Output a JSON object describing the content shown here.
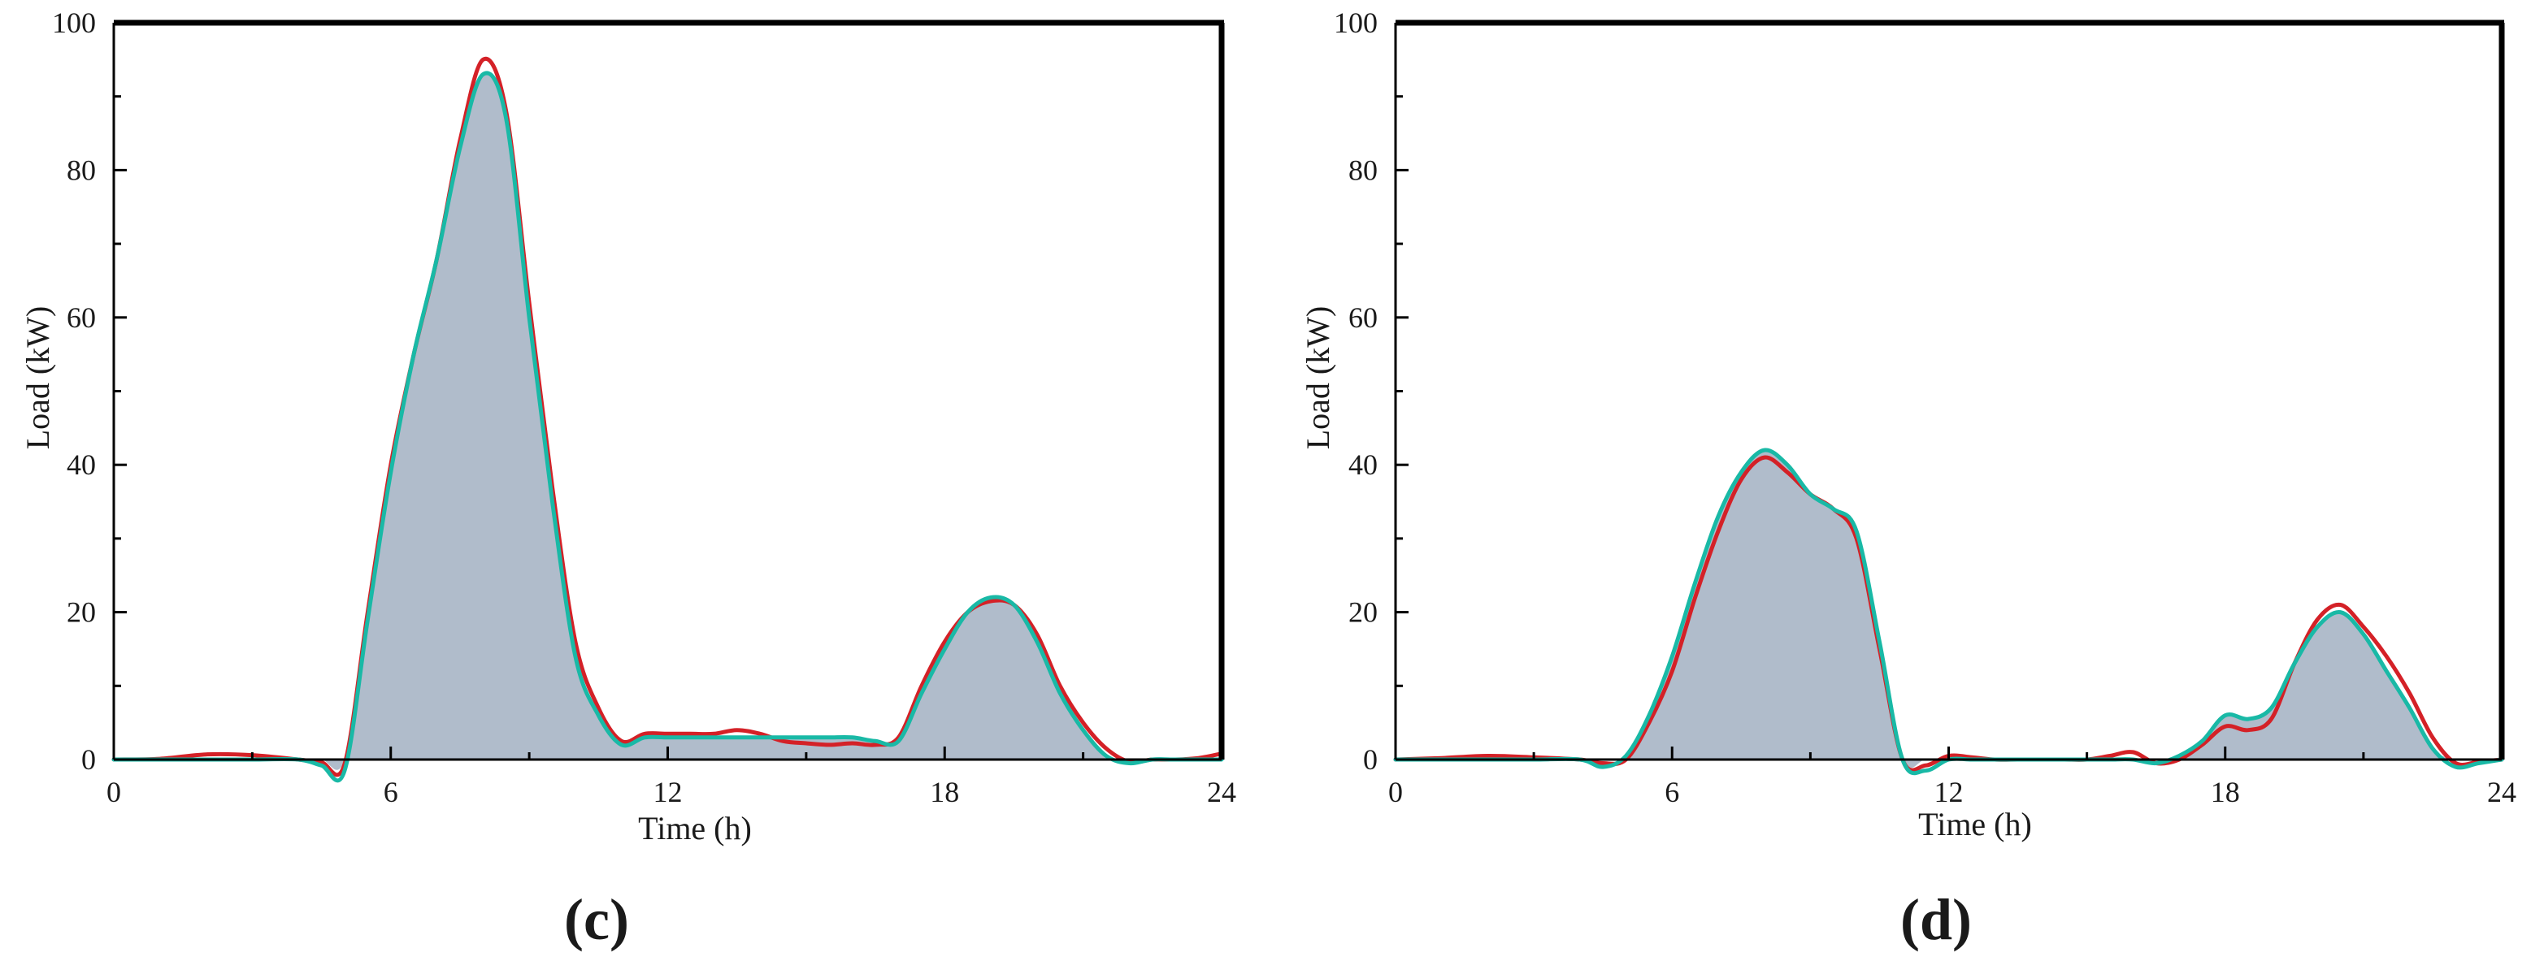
{
  "colors": {
    "fill": "#b0bccb",
    "red": "#d42127",
    "cyan": "#19b9a6",
    "axis": "#000000"
  },
  "chart_data": [
    {
      "type": "area",
      "panel_label": "(c)",
      "xlabel": "Time (h)",
      "ylabel": "Load (kW)",
      "xlim": [
        0,
        24
      ],
      "ylim": [
        0,
        100
      ],
      "xticks": [
        "0",
        "6",
        "12",
        "18",
        "24"
      ],
      "yticks": [
        "0",
        "20",
        "40",
        "60",
        "80",
        "100"
      ],
      "grid": false,
      "legend": "none",
      "x": [
        0,
        1,
        2,
        3,
        4,
        4.5,
        5,
        5.5,
        6,
        6.5,
        7,
        7.5,
        8,
        8.5,
        9,
        9.5,
        10,
        10.5,
        11,
        11.5,
        12,
        12.5,
        13,
        13.5,
        14,
        14.5,
        15,
        15.5,
        16,
        16.5,
        17,
        17.5,
        18,
        18.5,
        19,
        19.5,
        20,
        20.5,
        21,
        21.5,
        22,
        22.5,
        23,
        23.5,
        24
      ],
      "series": [
        {
          "color": "red",
          "values": [
            0,
            0.1,
            0.7,
            0.6,
            0,
            -0.4,
            -0.6,
            20,
            40,
            55,
            68,
            84,
            95,
            88,
            62,
            37,
            16,
            7,
            2.5,
            3.5,
            3.5,
            3.5,
            3.5,
            4,
            3.5,
            2.5,
            2.2,
            2,
            2.2,
            2,
            3,
            10,
            16,
            20,
            21.5,
            21,
            17,
            10,
            5,
            1.5,
            -0.3,
            0,
            0,
            0.2,
            0.8
          ]
        },
        {
          "color": "cyan",
          "values": [
            0,
            0,
            0,
            0,
            0,
            -0.8,
            -1.5,
            19,
            39,
            55,
            68,
            83,
            93,
            87,
            60,
            35,
            14,
            6,
            2,
            3,
            3,
            3,
            3,
            3,
            3,
            3,
            3,
            3,
            3,
            2.5,
            2.5,
            9,
            15,
            20,
            22,
            21,
            16,
            9,
            4,
            0.5,
            -0.5,
            0,
            0,
            0,
            0
          ]
        }
      ]
    },
    {
      "type": "area",
      "panel_label": "(d)",
      "xlabel": "Time (h)",
      "ylabel": "Load (kW)",
      "xlim": [
        0,
        24
      ],
      "ylim": [
        0,
        100
      ],
      "xticks": [
        "0",
        "6",
        "12",
        "18",
        "24"
      ],
      "yticks": [
        "0",
        "20",
        "40",
        "60",
        "80",
        "100"
      ],
      "grid": false,
      "legend": "none",
      "x": [
        0,
        1,
        2,
        3,
        4,
        4.5,
        5,
        5.5,
        6,
        6.5,
        7,
        7.5,
        8,
        8.5,
        9,
        9.5,
        10,
        10.5,
        11,
        11.5,
        12,
        12.5,
        13,
        13.5,
        14,
        14.5,
        15,
        15.5,
        16,
        16.5,
        17,
        17.5,
        18,
        18.5,
        19,
        19.5,
        20,
        20.5,
        21,
        21.5,
        22,
        22.5,
        23,
        23.5,
        24
      ],
      "series": [
        {
          "color": "red",
          "values": [
            0,
            0.2,
            0.5,
            0.3,
            0,
            -0.5,
            0,
            5,
            12,
            22,
            31,
            38,
            41,
            39,
            36,
            34,
            30,
            15,
            0,
            -0.8,
            0.5,
            0.3,
            0,
            0,
            0,
            0,
            0,
            0.5,
            1,
            -0.5,
            0,
            2,
            4.5,
            4,
            5.5,
            13,
            19,
            21,
            18,
            14,
            9,
            3,
            -0.5,
            -0.3,
            0
          ]
        },
        {
          "color": "cyan",
          "values": [
            0,
            0,
            0,
            0,
            0,
            -1,
            0.5,
            6,
            14,
            24,
            33,
            39,
            42,
            40,
            36,
            34,
            31,
            16,
            0,
            -1.5,
            0,
            0,
            0,
            0,
            0,
            0,
            0,
            0,
            0,
            -0.5,
            0.5,
            2.5,
            6,
            5.5,
            7,
            13,
            18,
            20,
            17,
            12,
            7,
            1.5,
            -1,
            -0.5,
            0
          ]
        }
      ]
    }
  ]
}
